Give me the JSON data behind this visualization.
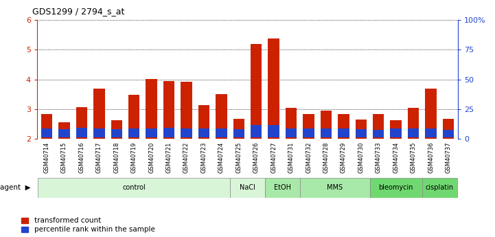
{
  "title": "GDS1299 / 2794_s_at",
  "samples": [
    "GSM40714",
    "GSM40715",
    "GSM40716",
    "GSM40717",
    "GSM40718",
    "GSM40719",
    "GSM40720",
    "GSM40721",
    "GSM40722",
    "GSM40723",
    "GSM40724",
    "GSM40725",
    "GSM40726",
    "GSM40727",
    "GSM40731",
    "GSM40732",
    "GSM40728",
    "GSM40729",
    "GSM40730",
    "GSM40733",
    "GSM40734",
    "GSM40735",
    "GSM40736",
    "GSM40737"
  ],
  "red_values": [
    2.82,
    2.55,
    3.07,
    3.68,
    2.62,
    3.48,
    4.02,
    3.94,
    3.92,
    3.13,
    3.5,
    2.68,
    5.2,
    5.38,
    3.05,
    2.82,
    2.95,
    2.82,
    2.65,
    2.82,
    2.62,
    3.05,
    3.68,
    2.68
  ],
  "blue_fractions": [
    0.3,
    0.28,
    0.32,
    0.3,
    0.28,
    0.3,
    0.3,
    0.32,
    0.3,
    0.3,
    0.3,
    0.28,
    0.42,
    0.42,
    0.3,
    0.3,
    0.3,
    0.3,
    0.28,
    0.26,
    0.3,
    0.3,
    0.3,
    0.26
  ],
  "red_base": 2.0,
  "ylim_left": [
    2.0,
    6.0
  ],
  "ylim_right": [
    0,
    100
  ],
  "yticks_left": [
    2,
    3,
    4,
    5,
    6
  ],
  "yticks_right": [
    0,
    25,
    50,
    75,
    100
  ],
  "yticklabels_right": [
    "0",
    "25",
    "50",
    "75",
    "100%"
  ],
  "agents": [
    {
      "label": "control",
      "start": 0,
      "end": 11,
      "color": "#d8f5d8"
    },
    {
      "label": "NaCl",
      "start": 11,
      "end": 13,
      "color": "#d8f5d8"
    },
    {
      "label": "EtOH",
      "start": 13,
      "end": 15,
      "color": "#a8e8a8"
    },
    {
      "label": "MMS",
      "start": 15,
      "end": 19,
      "color": "#a8e8a8"
    },
    {
      "label": "bleomycin",
      "start": 19,
      "end": 22,
      "color": "#70d870"
    },
    {
      "label": "cisplatin",
      "start": 22,
      "end": 24,
      "color": "#70d870"
    }
  ],
  "bar_color_red": "#cc2200",
  "bar_color_blue": "#2244cc",
  "background_color": "#ffffff",
  "tick_color_left": "#cc2200",
  "tick_color_right": "#2244cc",
  "legend_red": "transformed count",
  "legend_blue": "percentile rank within the sample",
  "agent_label": "agent"
}
